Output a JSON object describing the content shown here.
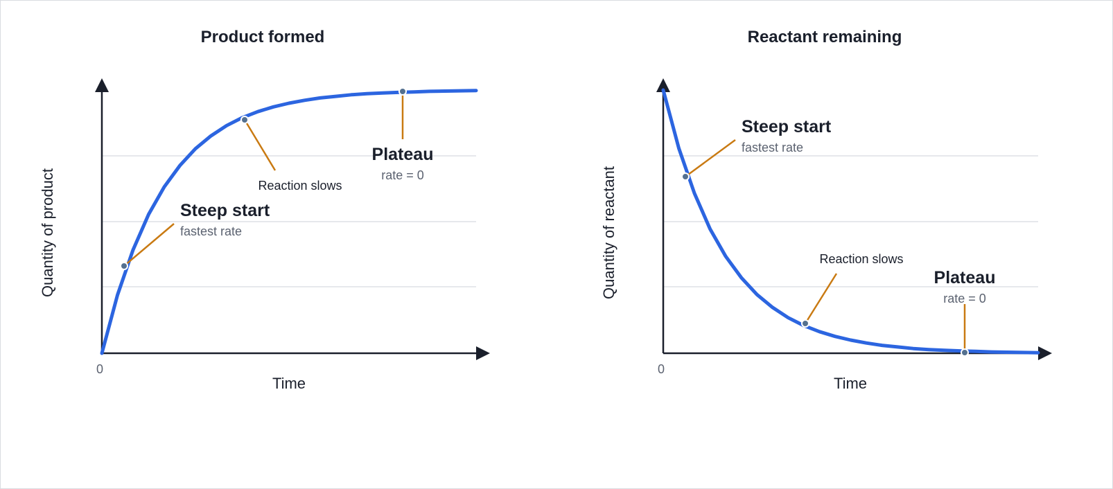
{
  "chart_data": [
    {
      "type": "line",
      "title": "Product formed",
      "xlabel": "Time",
      "ylabel": "Quantity of product",
      "x_tick_labels": [
        "0"
      ],
      "grid": "horizontal",
      "series": [
        {
          "color": "#2c65e0",
          "x": [
            0,
            0.25,
            0.5,
            0.75,
            1,
            1.25,
            1.5,
            1.75,
            2,
            2.25,
            2.5,
            2.75,
            3,
            3.25,
            3.5,
            3.75,
            4,
            4.25,
            4.5,
            4.75,
            5,
            5.25,
            5.5,
            5.75,
            6
          ],
          "y": [
            0,
            0.221,
            0.393,
            0.528,
            0.632,
            0.713,
            0.777,
            0.826,
            0.865,
            0.895,
            0.918,
            0.936,
            0.95,
            0.961,
            0.97,
            0.976,
            0.982,
            0.986,
            0.989,
            0.991,
            0.993,
            0.995,
            0.996,
            0.997,
            0.998
          ]
        }
      ],
      "annotations": [
        {
          "x": 0.35,
          "y": 0.3,
          "label": "Steep start",
          "sublabel": "fastest rate"
        },
        {
          "x": 2.28,
          "y": 0.87,
          "label": "Reaction slows",
          "sublabel": ""
        },
        {
          "x": 4.8,
          "y": 0.99,
          "label": "Plateau",
          "sublabel": "rate = 0"
        }
      ]
    },
    {
      "type": "line",
      "title": "Reactant remaining",
      "xlabel": "Time",
      "ylabel": "Quantity of reactant",
      "x_tick_labels": [
        "0"
      ],
      "grid": "horizontal",
      "series": [
        {
          "color": "#2c65e0",
          "x": [
            0,
            0.25,
            0.5,
            0.75,
            1,
            1.25,
            1.5,
            1.75,
            2,
            2.25,
            2.5,
            2.75,
            3,
            3.25,
            3.5,
            3.75,
            4,
            4.25,
            4.5,
            4.75,
            5,
            5.25,
            5.5,
            5.75,
            6
          ],
          "y": [
            1,
            0.779,
            0.607,
            0.472,
            0.368,
            0.287,
            0.223,
            0.174,
            0.135,
            0.105,
            0.082,
            0.064,
            0.05,
            0.039,
            0.03,
            0.024,
            0.018,
            0.014,
            0.011,
            0.009,
            0.007,
            0.005,
            0.004,
            0.003,
            0.002
          ]
        }
      ],
      "annotations": [
        {
          "x": 0.35,
          "y": 0.66,
          "label": "Steep start",
          "sublabel": "fastest rate"
        },
        {
          "x": 2.28,
          "y": 0.1,
          "label": "Reaction slows",
          "sublabel": ""
        },
        {
          "x": 4.8,
          "y": 0.005,
          "label": "Plateau",
          "sublabel": "rate = 0"
        }
      ]
    }
  ]
}
